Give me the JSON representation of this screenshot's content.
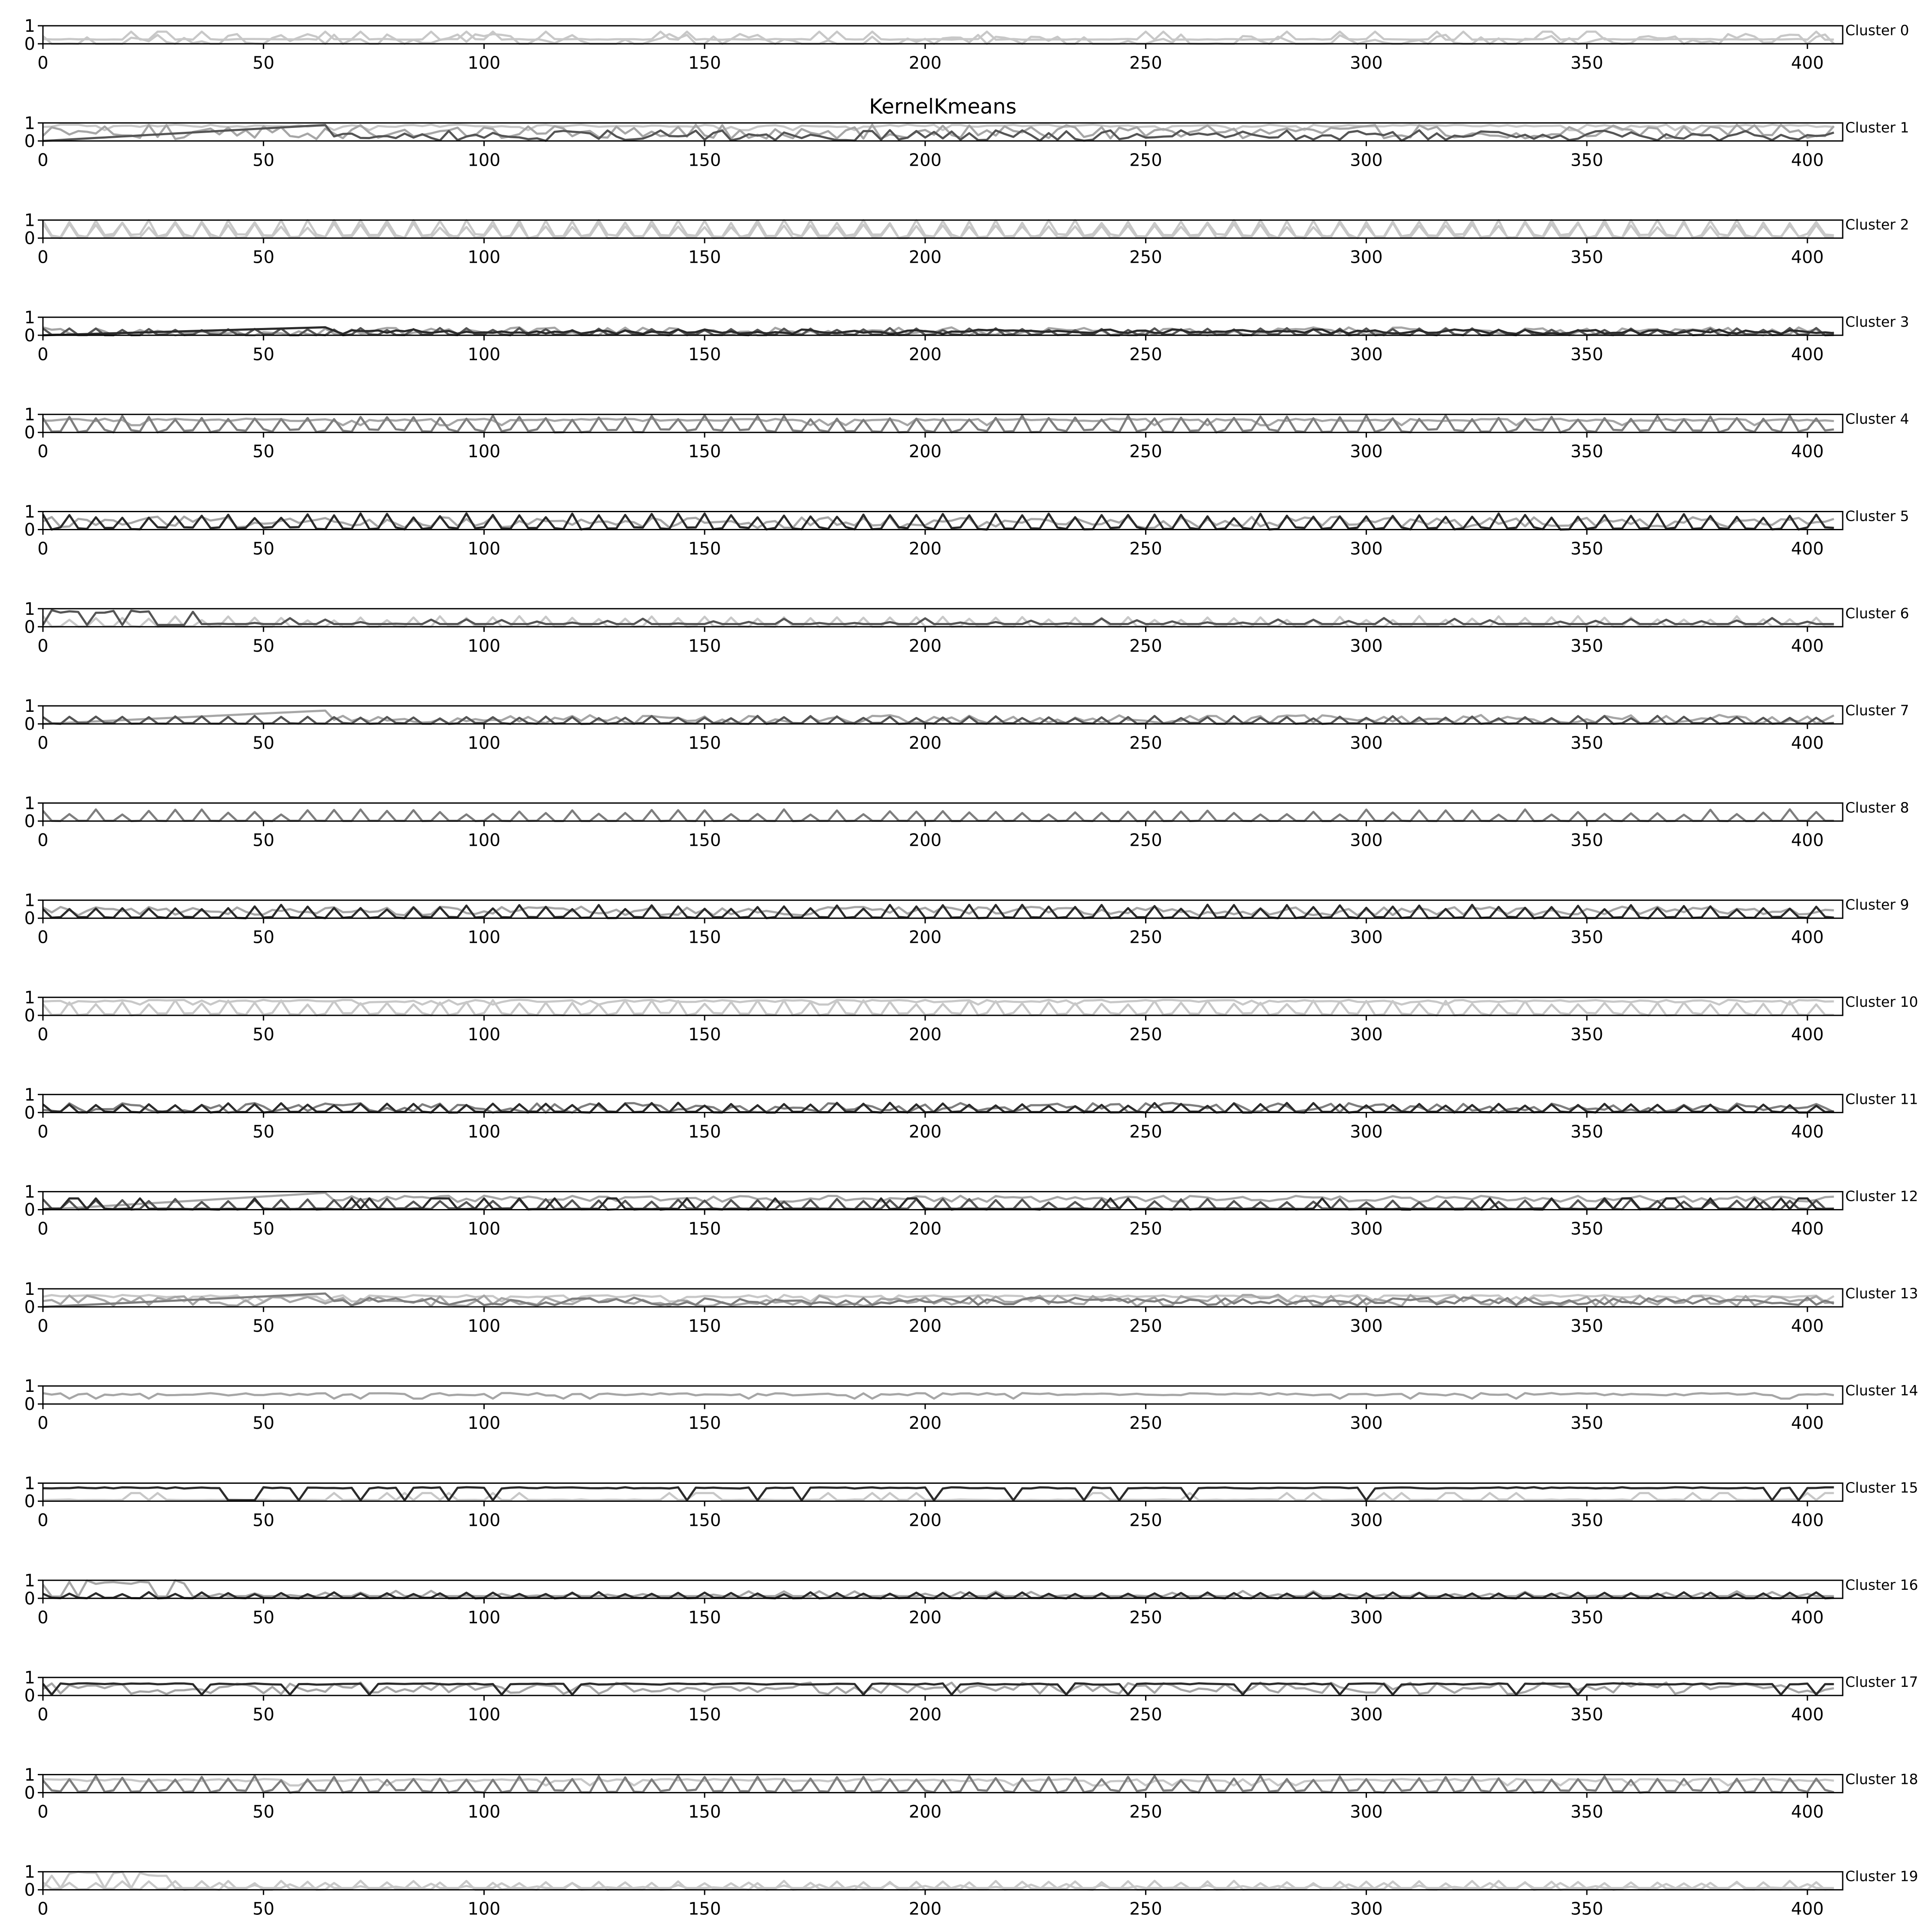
{
  "title": "KernelKmeans",
  "colors": {
    "frame": "#000000",
    "background": "#ffffff",
    "series_palette": [
      "#c8c8c8",
      "#a6a6a6",
      "#7e7e7e",
      "#555555",
      "#2b2b2b"
    ]
  },
  "chart_data": {
    "type": "line",
    "title": "KernelKmeans",
    "title_position": "above panel 1",
    "xlim": [
      0,
      408
    ],
    "ylim": [
      0,
      1
    ],
    "x_ticks": [
      0,
      50,
      100,
      150,
      200,
      250,
      300,
      350,
      400
    ],
    "y_ticks": [
      0,
      1
    ],
    "grid": false,
    "legend": "none",
    "panel_label_position": "right",
    "panels": [
      {
        "label": "Cluster 0",
        "series": [
          {
            "color": "#c8c8c8",
            "pattern": "lowflat",
            "level": 0.45,
            "amp": 0.45,
            "seed": 1
          },
          {
            "color": "#c8c8c8",
            "pattern": "mixed",
            "level": 0.15,
            "amp": 0.5,
            "seed": 2
          }
        ]
      },
      {
        "label": "Cluster 1",
        "series": [
          {
            "color": "#c8c8c8",
            "pattern": "flat",
            "level": 0.85,
            "amp": 0.25,
            "seed": 3
          },
          {
            "color": "#a6a6a6",
            "pattern": "mixed",
            "level": 0.5,
            "amp": 0.5,
            "seed": 4
          },
          {
            "color": "#555555",
            "pattern": "ramp",
            "level": 0.3,
            "amp": 0.6,
            "seed": 5
          }
        ]
      },
      {
        "label": "Cluster 2",
        "series": [
          {
            "color": "#c8c8c8",
            "pattern": "spiky",
            "level": 0.6,
            "amp": 0.45,
            "seed": 6
          },
          {
            "color": "#c8c8c8",
            "pattern": "spiky",
            "level": 0.3,
            "amp": 0.55,
            "seed": 7
          }
        ]
      },
      {
        "label": "Cluster 3",
        "series": [
          {
            "color": "#a6a6a6",
            "pattern": "mixed",
            "level": 0.2,
            "amp": 0.3,
            "seed": 8
          },
          {
            "color": "#555555",
            "pattern": "spiky",
            "level": 0.15,
            "amp": 0.25,
            "seed": 9
          },
          {
            "color": "#2b2b2b",
            "pattern": "ramp",
            "level": 0.2,
            "amp": 0.25,
            "seed": 10
          }
        ]
      },
      {
        "label": "Cluster 4",
        "series": [
          {
            "color": "#a6a6a6",
            "pattern": "flat",
            "level": 0.7,
            "amp": 0.3,
            "seed": 11
          },
          {
            "color": "#7e7e7e",
            "pattern": "spiky",
            "level": 0.45,
            "amp": 0.5,
            "seed": 12
          }
        ]
      },
      {
        "label": "Cluster 5",
        "series": [
          {
            "color": "#a6a6a6",
            "pattern": "mixed",
            "level": 0.4,
            "amp": 0.4,
            "seed": 13
          },
          {
            "color": "#2b2b2b",
            "pattern": "spiky",
            "level": 0.35,
            "amp": 0.55,
            "seed": 14
          }
        ]
      },
      {
        "label": "Cluster 6",
        "series": [
          {
            "color": "#c8c8c8",
            "pattern": "spiky",
            "level": 0.1,
            "amp": 0.5,
            "seed": 15
          },
          {
            "color": "#555555",
            "pattern": "burst",
            "level": 0.3,
            "amp": 0.7,
            "seed": 16
          }
        ]
      },
      {
        "label": "Cluster 7",
        "series": [
          {
            "color": "#a6a6a6",
            "pattern": "ramp",
            "level": 0.25,
            "amp": 0.5,
            "seed": 17
          },
          {
            "color": "#555555",
            "pattern": "spiky",
            "level": 0.15,
            "amp": 0.3,
            "seed": 18
          }
        ]
      },
      {
        "label": "Cluster 8",
        "series": [
          {
            "color": "#7e7e7e",
            "pattern": "spiky",
            "level": 0.05,
            "amp": 0.6,
            "seed": 19
          }
        ]
      },
      {
        "label": "Cluster 9",
        "series": [
          {
            "color": "#a6a6a6",
            "pattern": "mixed",
            "level": 0.4,
            "amp": 0.3,
            "seed": 20
          },
          {
            "color": "#2b2b2b",
            "pattern": "spiky",
            "level": 0.2,
            "amp": 0.55,
            "seed": 21
          }
        ]
      },
      {
        "label": "Cluster 10",
        "series": [
          {
            "color": "#c8c8c8",
            "pattern": "flat",
            "level": 0.8,
            "amp": 0.2,
            "seed": 22
          },
          {
            "color": "#c8c8c8",
            "pattern": "spiky",
            "level": 0.35,
            "amp": 0.5,
            "seed": 23
          }
        ]
      },
      {
        "label": "Cluster 11",
        "series": [
          {
            "color": "#7e7e7e",
            "pattern": "mixed",
            "level": 0.25,
            "amp": 0.35,
            "seed": 24
          },
          {
            "color": "#2b2b2b",
            "pattern": "spiky",
            "level": 0.15,
            "amp": 0.4,
            "seed": 25
          }
        ]
      },
      {
        "label": "Cluster 12",
        "series": [
          {
            "color": "#a6a6a6",
            "pattern": "ramp",
            "level": 0.6,
            "amp": 0.35,
            "seed": 26
          },
          {
            "color": "#555555",
            "pattern": "spiky",
            "level": 0.2,
            "amp": 0.4,
            "seed": 27
          },
          {
            "color": "#2b2b2b",
            "pattern": "lowflat",
            "level": 0.05,
            "amp": 0.6,
            "seed": 28
          }
        ]
      },
      {
        "label": "Cluster 13",
        "series": [
          {
            "color": "#c8c8c8",
            "pattern": "flat",
            "level": 0.6,
            "amp": 0.3,
            "seed": 29
          },
          {
            "color": "#a6a6a6",
            "pattern": "mixed",
            "level": 0.35,
            "amp": 0.4,
            "seed": 30
          },
          {
            "color": "#7e7e7e",
            "pattern": "ramp",
            "level": 0.3,
            "amp": 0.45,
            "seed": 31
          }
        ]
      },
      {
        "label": "Cluster 14",
        "series": [
          {
            "color": "#a6a6a6",
            "pattern": "flat",
            "level": 0.55,
            "amp": 0.25,
            "seed": 32
          }
        ]
      },
      {
        "label": "Cluster 15",
        "series": [
          {
            "color": "#c8c8c8",
            "pattern": "lowflat",
            "level": 0.1,
            "amp": 0.4,
            "seed": 33
          },
          {
            "color": "#2b2b2b",
            "pattern": "highdip",
            "level": 0.7,
            "amp": 0.6,
            "seed": 34
          }
        ]
      },
      {
        "label": "Cluster 16",
        "series": [
          {
            "color": "#a6a6a6",
            "pattern": "burst",
            "level": 0.25,
            "amp": 0.6,
            "seed": 35
          },
          {
            "color": "#2b2b2b",
            "pattern": "spiky",
            "level": 0.1,
            "amp": 0.25,
            "seed": 36
          }
        ]
      },
      {
        "label": "Cluster 17",
        "series": [
          {
            "color": "#a6a6a6",
            "pattern": "mixed",
            "level": 0.4,
            "amp": 0.4,
            "seed": 37
          },
          {
            "color": "#2b2b2b",
            "pattern": "highdip",
            "level": 0.6,
            "amp": 0.5,
            "seed": 38
          }
        ]
      },
      {
        "label": "Cluster 18",
        "series": [
          {
            "color": "#c8c8c8",
            "pattern": "flat",
            "level": 0.7,
            "amp": 0.3,
            "seed": 39
          },
          {
            "color": "#7e7e7e",
            "pattern": "spiky",
            "level": 0.4,
            "amp": 0.55,
            "seed": 40
          }
        ]
      },
      {
        "label": "Cluster 19",
        "series": [
          {
            "color": "#c8c8c8",
            "pattern": "burst",
            "level": 0.2,
            "amp": 0.6,
            "seed": 41
          },
          {
            "color": "#c8c8c8",
            "pattern": "spiky",
            "level": 0.2,
            "amp": 0.3,
            "seed": 42
          }
        ]
      }
    ]
  }
}
